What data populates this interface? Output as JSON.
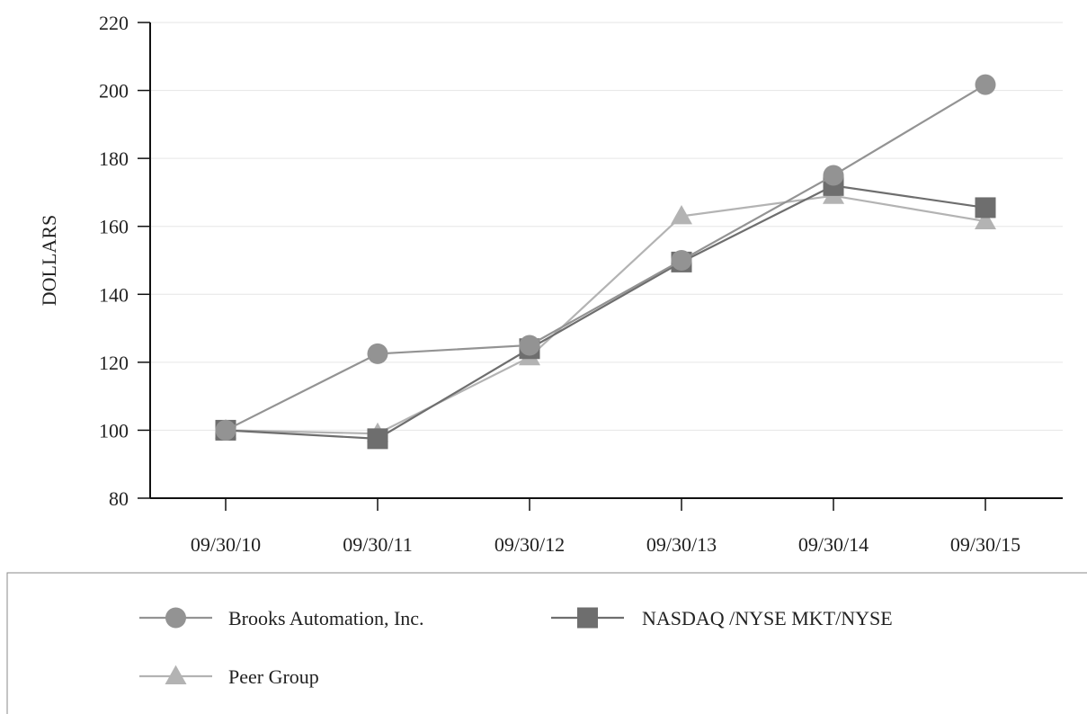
{
  "chart_data": {
    "type": "line",
    "title": "",
    "xlabel": "",
    "ylabel": "DOLLARS",
    "categories": [
      "09/30/10",
      "09/30/11",
      "09/30/12",
      "09/30/13",
      "09/30/14",
      "09/30/15"
    ],
    "ylim": [
      80,
      220
    ],
    "yticks": [
      80,
      100,
      120,
      140,
      160,
      180,
      200,
      220
    ],
    "grid": true,
    "legend_position": "bottom",
    "series": [
      {
        "name": "Brooks Automation, Inc.",
        "marker": "circle",
        "color": "#939393",
        "values": [
          100,
          122.5,
          125,
          150,
          175,
          201.7
        ]
      },
      {
        "name": "NASDAQ /NYSE MKT/NYSE",
        "marker": "square",
        "color": "#6e6e6e",
        "values": [
          100,
          97.5,
          124,
          149.5,
          172,
          165.5
        ]
      },
      {
        "name": "Peer Group",
        "marker": "triangle",
        "color": "#b3b3b3",
        "values": [
          100,
          99,
          121.5,
          163,
          169,
          161.5
        ]
      }
    ]
  }
}
